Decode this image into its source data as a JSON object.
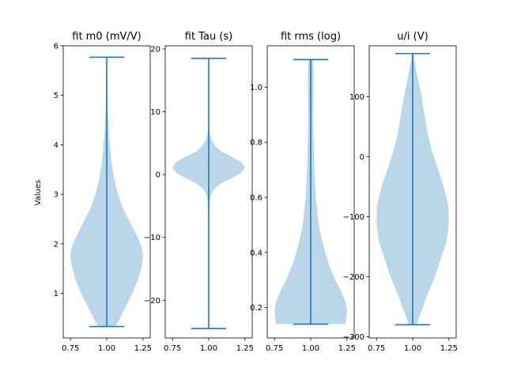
{
  "figure": {
    "ylabel": "Values"
  },
  "colors": {
    "violin_fill": "#1f77b4",
    "violin_fill_opacity": 0.3,
    "violin_line": "#1f77b4",
    "axes_edge": "#000000",
    "background": "#ffffff"
  },
  "chart_data": [
    {
      "type": "violin",
      "title": "fit m0 (mV/V)",
      "xlabel": "",
      "ylabel": "Values",
      "position": 1.0,
      "xlim": [
        0.7,
        1.3
      ],
      "xticks": [
        0.75,
        1.0,
        1.25
      ],
      "xtick_labels": [
        "0.75",
        "1.00",
        "1.25"
      ],
      "ylim": [
        0.1,
        6.0
      ],
      "yticks": [
        1,
        2,
        3,
        4,
        5,
        6
      ],
      "ytick_labels": [
        "1",
        "2",
        "3",
        "4",
        "5",
        "6"
      ],
      "min": 0.33,
      "max": 5.77,
      "density_profile": [
        [
          0.33,
          0.055
        ],
        [
          0.45,
          0.08
        ],
        [
          0.7,
          0.12
        ],
        [
          1.0,
          0.17
        ],
        [
          1.3,
          0.21
        ],
        [
          1.6,
          0.235
        ],
        [
          1.75,
          0.24
        ],
        [
          1.9,
          0.235
        ],
        [
          2.1,
          0.21
        ],
        [
          2.4,
          0.16
        ],
        [
          2.7,
          0.11
        ],
        [
          3.0,
          0.075
        ],
        [
          3.3,
          0.05
        ],
        [
          3.7,
          0.03
        ],
        [
          4.2,
          0.015
        ],
        [
          4.8,
          0.006
        ],
        [
          5.4,
          0.003
        ],
        [
          5.77,
          0.002
        ]
      ]
    },
    {
      "type": "violin",
      "title": "fit Tau (s)",
      "xlabel": "",
      "position": 1.0,
      "xlim": [
        0.7,
        1.3
      ],
      "xticks": [
        0.75,
        1.0,
        1.25
      ],
      "xtick_labels": [
        "0.75",
        "1.00",
        "1.25"
      ],
      "ylim": [
        -26.0,
        20.5
      ],
      "yticks": [
        -20,
        -10,
        0,
        10,
        20
      ],
      "ytick_labels": [
        "−20",
        "−10",
        "0",
        "10",
        "20"
      ],
      "min": -24.5,
      "max": 18.5,
      "density_profile": [
        [
          -24.5,
          0.0
        ],
        [
          -8.0,
          0.0
        ],
        [
          -5.0,
          0.004
        ],
        [
          -3.5,
          0.012
        ],
        [
          -2.5,
          0.03
        ],
        [
          -1.5,
          0.075
        ],
        [
          -0.5,
          0.16
        ],
        [
          0.3,
          0.22
        ],
        [
          1.2,
          0.245
        ],
        [
          2.0,
          0.22
        ],
        [
          2.8,
          0.16
        ],
        [
          3.6,
          0.09
        ],
        [
          4.5,
          0.045
        ],
        [
          5.5,
          0.02
        ],
        [
          6.5,
          0.008
        ],
        [
          7.5,
          0.003
        ],
        [
          9.0,
          0.0
        ],
        [
          18.5,
          0.0
        ]
      ]
    },
    {
      "type": "violin",
      "title": "fit rms (log)",
      "xlabel": "",
      "position": 1.0,
      "xlim": [
        0.7,
        1.3
      ],
      "xticks": [
        0.75,
        1.0,
        1.25
      ],
      "xtick_labels": [
        "0.75",
        "1.00",
        "1.25"
      ],
      "ylim": [
        0.09,
        1.15
      ],
      "yticks": [
        0.2,
        0.4,
        0.6,
        0.8,
        1.0
      ],
      "ytick_labels": [
        "0.2",
        "0.4",
        "0.6",
        "0.8",
        "1.0"
      ],
      "min": 0.14,
      "max": 1.1,
      "density_profile": [
        [
          0.14,
          0.24
        ],
        [
          0.16,
          0.245
        ],
        [
          0.19,
          0.25
        ],
        [
          0.22,
          0.24
        ],
        [
          0.26,
          0.21
        ],
        [
          0.3,
          0.17
        ],
        [
          0.35,
          0.13
        ],
        [
          0.4,
          0.1
        ],
        [
          0.45,
          0.075
        ],
        [
          0.5,
          0.055
        ],
        [
          0.6,
          0.035
        ],
        [
          0.7,
          0.025
        ],
        [
          0.8,
          0.02
        ],
        [
          0.9,
          0.017
        ],
        [
          1.0,
          0.02
        ],
        [
          1.05,
          0.02
        ],
        [
          1.1,
          0.015
        ]
      ]
    },
    {
      "type": "violin",
      "title": "u/i (V)",
      "xlabel": "",
      "position": 1.0,
      "xlim": [
        0.7,
        1.3
      ],
      "xticks": [
        0.75,
        1.0,
        1.25
      ],
      "xtick_labels": [
        "0.75",
        "1.00",
        "1.25"
      ],
      "ylim": [
        -302,
        185
      ],
      "yticks": [
        -300,
        -200,
        -100,
        0,
        100
      ],
      "ytick_labels": [
        "−300",
        "−200",
        "−100",
        "0",
        "100"
      ],
      "min": -280,
      "max": 172,
      "density_profile": [
        [
          -280,
          0.03
        ],
        [
          -270,
          0.04
        ],
        [
          -250,
          0.07
        ],
        [
          -230,
          0.1
        ],
        [
          -200,
          0.15
        ],
        [
          -170,
          0.19
        ],
        [
          -140,
          0.23
        ],
        [
          -110,
          0.245
        ],
        [
          -80,
          0.24
        ],
        [
          -50,
          0.21
        ],
        [
          -20,
          0.17
        ],
        [
          10,
          0.13
        ],
        [
          40,
          0.1
        ],
        [
          70,
          0.08
        ],
        [
          100,
          0.06
        ],
        [
          130,
          0.035
        ],
        [
          160,
          0.012
        ],
        [
          172,
          0.005
        ]
      ]
    }
  ]
}
